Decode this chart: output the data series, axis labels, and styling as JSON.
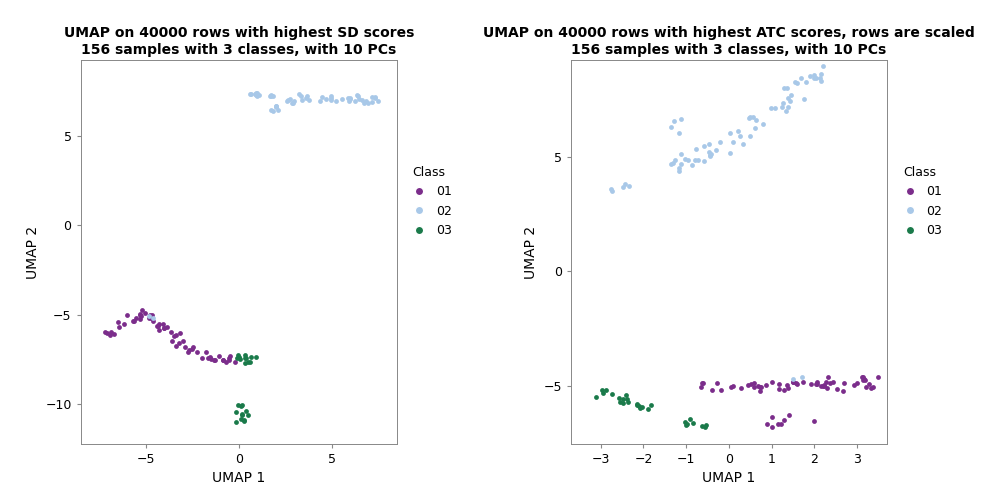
{
  "plot1": {
    "title1": "UMAP on 40000 rows with highest SD scores",
    "title2": "156 samples with 3 classes, with 10 PCs",
    "xlabel": "UMAP 1",
    "ylabel": "UMAP 2",
    "xlim": [
      -8.5,
      8.5
    ],
    "ylim": [
      -12.2,
      9.2
    ],
    "xticks": [
      -5,
      0,
      5
    ],
    "yticks": [
      -10,
      -5,
      0,
      5
    ]
  },
  "plot2": {
    "title1": "UMAP on 40000 rows with highest ATC scores, rows are scaled",
    "title2": "156 samples with 3 classes, with 10 PCs",
    "xlabel": "UMAP 1",
    "ylabel": "UMAP 2",
    "xlim": [
      -3.7,
      3.7
    ],
    "ylim": [
      -7.5,
      9.2
    ],
    "xticks": [
      -3,
      -2,
      -1,
      0,
      1,
      2,
      3
    ],
    "yticks": [
      -5,
      0,
      5
    ]
  },
  "color01": "#7B2D8B",
  "color02": "#A8C8E8",
  "color03": "#1A7A4A",
  "point_size": 12,
  "bg_color": "#FFFFFF",
  "panel_bg": "#FFFFFF",
  "legend_title": "Class",
  "legend_labels": [
    "01",
    "02",
    "03"
  ]
}
